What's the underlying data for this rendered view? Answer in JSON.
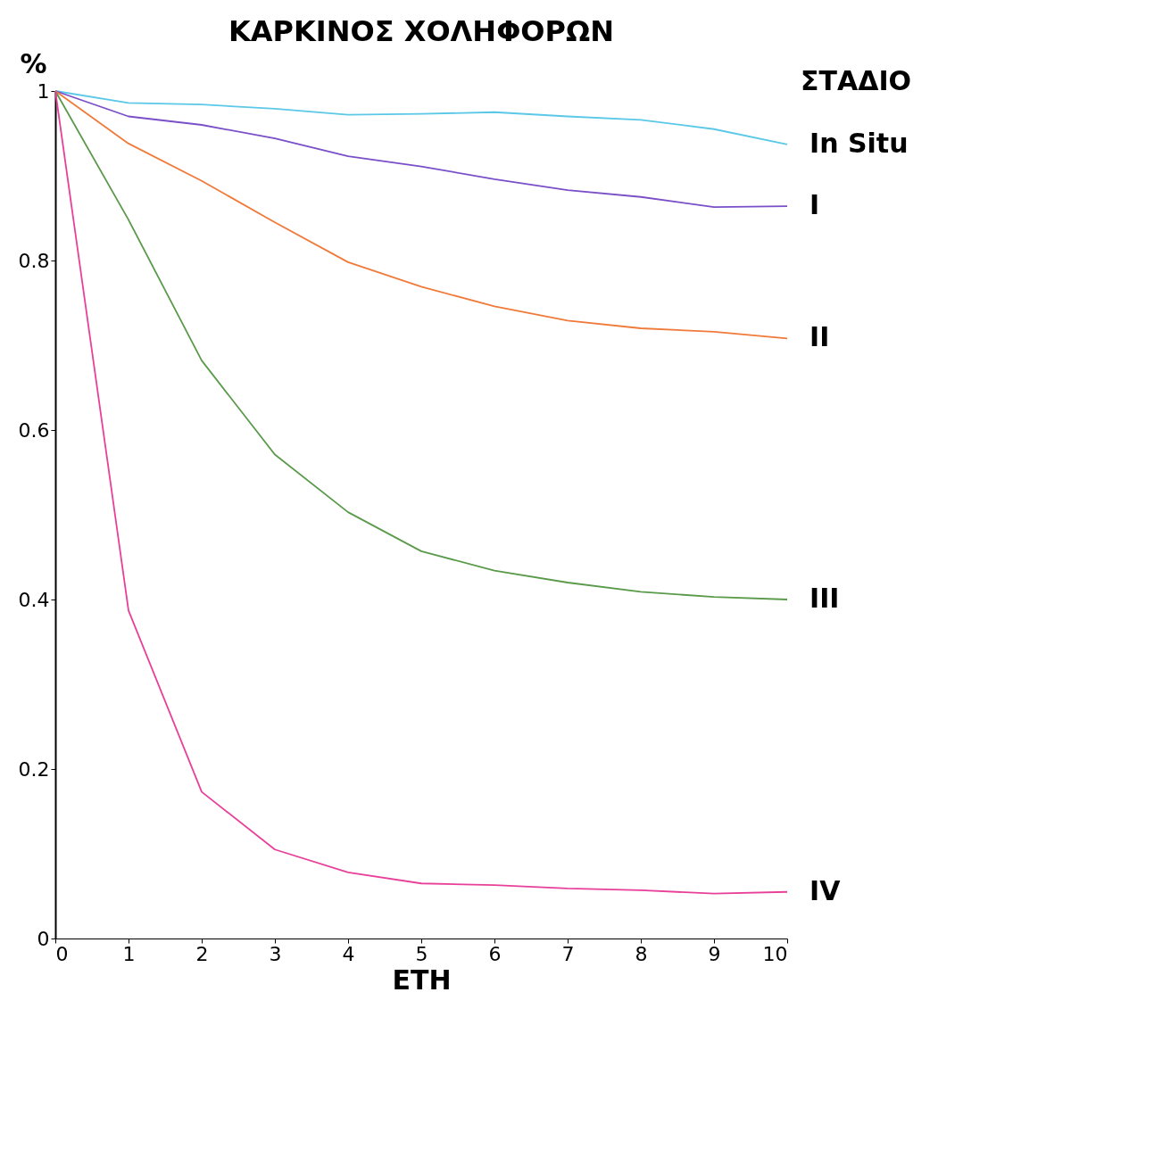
{
  "chart_data": {
    "type": "line",
    "title": "ΚΑΡΚΙΝΟΣ ΧΟΛΗΦΟΡΩΝ",
    "xlabel": "ΕΤΗ",
    "ylabel": "%",
    "legend_title": "ΣΤΑΔΙΟ",
    "legend": "right",
    "grid": false,
    "marker": "none",
    "line_style": "solid",
    "x": [
      0,
      1,
      2,
      3,
      4,
      5,
      6,
      7,
      8,
      9,
      10
    ],
    "xlim": [
      0,
      10
    ],
    "xticks": [
      0,
      1,
      2,
      3,
      4,
      5,
      6,
      7,
      8,
      9,
      10
    ],
    "ylim": [
      0,
      1
    ],
    "yticks": [
      0,
      0.2,
      0.4,
      0.6,
      0.8,
      1
    ],
    "series": [
      {
        "name": "In Situ",
        "color": "#5bc8e8",
        "values": [
          1,
          0.986,
          0.984,
          0.979,
          0.972,
          0.973,
          0.975,
          0.97,
          0.966,
          0.955,
          0.937
        ]
      },
      {
        "name": "I",
        "color": "#7a4fc8",
        "values": [
          1,
          0.97,
          0.96,
          0.944,
          0.923,
          0.911,
          0.896,
          0.883,
          0.875,
          0.863,
          0.864
        ]
      },
      {
        "name": "II",
        "color": "#f07a3a",
        "values": [
          1,
          0.938,
          0.894,
          0.845,
          0.798,
          0.769,
          0.746,
          0.729,
          0.72,
          0.716,
          0.708
        ]
      },
      {
        "name": "III",
        "color": "#5a9a4a",
        "values": [
          1,
          0.848,
          0.682,
          0.571,
          0.503,
          0.457,
          0.434,
          0.42,
          0.409,
          0.403,
          0.4
        ]
      },
      {
        "name": "IV",
        "color": "#e8409a",
        "values": [
          1,
          0.387,
          0.173,
          0.105,
          0.078,
          0.065,
          0.063,
          0.059,
          0.057,
          0.053,
          0.055
        ]
      }
    ]
  }
}
